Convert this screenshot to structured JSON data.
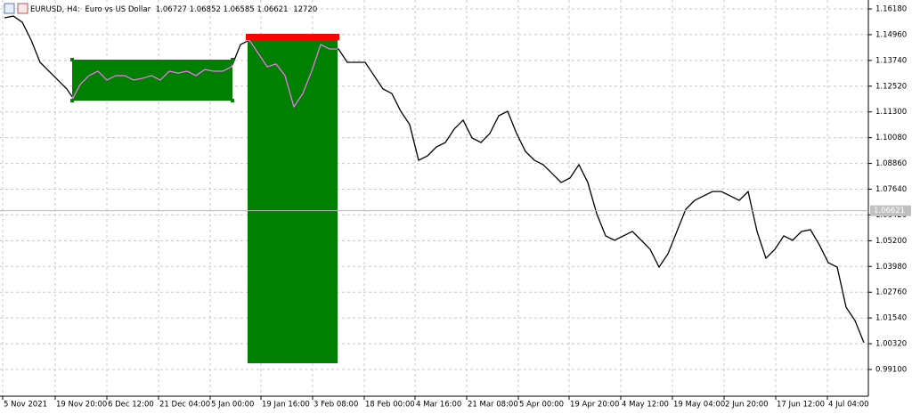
{
  "chart_data": {
    "type": "line",
    "symbol": "EURUSD, H4:",
    "description": "Euro vs US Dollar",
    "ohlc": [
      1.06727,
      1.06852,
      1.06585,
      1.06621
    ],
    "tick_volume": 12720,
    "last_price": {
      "value": 1.06621,
      "label": "1.06621"
    },
    "x": [
      5,
      15,
      25,
      35,
      45,
      55,
      65,
      75,
      82,
      90,
      100,
      110,
      120,
      130,
      140,
      150,
      160,
      170,
      180,
      190,
      200,
      210,
      220,
      230,
      240,
      250,
      260,
      270,
      280,
      290,
      300,
      310,
      320,
      330,
      340,
      350,
      360,
      370,
      380,
      390,
      400,
      410,
      420,
      430,
      440,
      450,
      460,
      470,
      480,
      490,
      500,
      510,
      520,
      530,
      540,
      550,
      560,
      570,
      580,
      590,
      600,
      610,
      620,
      630,
      640,
      650,
      660,
      670,
      680,
      690,
      700,
      710,
      720,
      730,
      740,
      750,
      760,
      770,
      780,
      790,
      800,
      810,
      820,
      830,
      840,
      850,
      860,
      870,
      880,
      890,
      900,
      910,
      920,
      930,
      940,
      950,
      960,
      970
    ],
    "series": [
      {
        "color": "#000000",
        "values": [
          1.1576,
          1.1584,
          1.1555,
          1.147,
          1.1365,
          1.1323,
          1.1281,
          1.1239,
          1.1196,
          1.126,
          1.1302,
          1.1323,
          1.1281,
          1.1302,
          1.1302,
          1.1281,
          1.1289,
          1.1302,
          1.1281,
          1.1323,
          1.1314,
          1.1323,
          1.1302,
          1.1331,
          1.1323,
          1.1323,
          1.1344,
          1.1449,
          1.147,
          1.1407,
          1.1344,
          1.1357,
          1.1302,
          1.1154,
          1.1217,
          1.1323,
          1.1449,
          1.1428,
          1.1428,
          1.1365,
          1.1365,
          1.1365,
          1.1302,
          1.1239,
          1.1217,
          1.1133,
          1.107,
          1.0901,
          1.0922,
          1.0964,
          1.0985,
          1.1049,
          1.1091,
          1.1007,
          1.0985,
          1.1028,
          1.1112,
          1.1133,
          1.1028,
          1.0943,
          1.0901,
          1.088,
          1.0838,
          1.0796,
          1.0817,
          1.088,
          1.0796,
          1.0648,
          1.0543,
          1.0522,
          1.0543,
          1.0564,
          1.0522,
          1.0479,
          1.0395,
          1.0458,
          1.0564,
          1.0669,
          1.0711,
          1.0732,
          1.0753,
          1.0753,
          1.0732,
          1.0711,
          1.0753,
          1.0564,
          1.0437,
          1.0479,
          1.0543,
          1.0522,
          1.0564,
          1.0572,
          1.05,
          1.0416,
          1.0395,
          1.0205,
          1.0142,
          1.0037
        ]
      }
    ],
    "xlim": [
      0,
      975
    ],
    "ylim": [
      0.97835,
      1.16602
    ],
    "yticks": [
      {
        "value": 1.1618,
        "label": "1.16180"
      },
      {
        "value": 1.1496,
        "label": "1.14960"
      },
      {
        "value": 1.1374,
        "label": "1.13740"
      },
      {
        "value": 1.1252,
        "label": "1.12520"
      },
      {
        "value": 1.113,
        "label": "1.11300"
      },
      {
        "value": 1.1008,
        "label": "1.10080"
      },
      {
        "value": 1.0886,
        "label": "1.08860"
      },
      {
        "value": 1.0764,
        "label": "1.07640"
      },
      {
        "value": 1.0642,
        "label": "1.06420"
      },
      {
        "value": 1.052,
        "label": "1.05200"
      },
      {
        "value": 1.0398,
        "label": "1.03980"
      },
      {
        "value": 1.0276,
        "label": "1.02760"
      },
      {
        "value": 1.0154,
        "label": "1.01540"
      },
      {
        "value": 1.0032,
        "label": "1.00320"
      },
      {
        "value": 0.991,
        "label": "0.99100"
      }
    ],
    "xticks": [
      {
        "value": 3,
        "label": "5 Nov 2021"
      },
      {
        "value": 62,
        "label": "19 Nov 20:00"
      },
      {
        "value": 120,
        "label": "6 Dec 12:00"
      },
      {
        "value": 178,
        "label": "21 Dec 04:00"
      },
      {
        "value": 236,
        "label": "5 Jan 00:00"
      },
      {
        "value": 293,
        "label": "19 Jan 16:00"
      },
      {
        "value": 351,
        "label": "3 Feb 08:00"
      },
      {
        "value": 409,
        "label": "18 Feb 00:00"
      },
      {
        "value": 466,
        "label": "4 Mar 16:00"
      },
      {
        "value": 524,
        "label": "21 Mar 08:00"
      },
      {
        "value": 582,
        "label": "5 Apr 00:00"
      },
      {
        "value": 639,
        "label": "19 Apr 20:00"
      },
      {
        "value": 697,
        "label": "4 May 12:00"
      },
      {
        "value": 755,
        "label": "19 May 04:00"
      },
      {
        "value": 813,
        "label": "2 Jun 20:00"
      },
      {
        "value": 871,
        "label": "17 Jun 12:00"
      },
      {
        "value": 929,
        "label": "4 Jul 04:00"
      }
    ],
    "grid": true
  }
}
